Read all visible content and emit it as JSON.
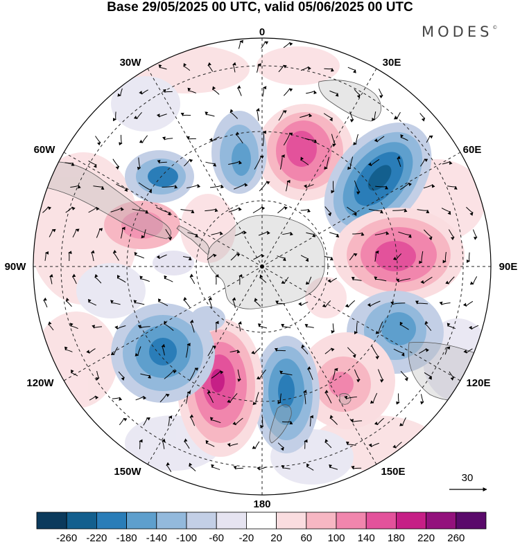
{
  "title": "Base 29/05/2025 00 UTC, valid 05/06/2025 00 UTC",
  "brand": "MODES",
  "brand_mark": "©",
  "longitude_labels": {
    "lon_0": "0",
    "lon_30e": "30E",
    "lon_60e": "60E",
    "lon_90e": "90E",
    "lon_120e": "120E",
    "lon_150e": "150E",
    "lon_180": "180",
    "lon_150w": "150W",
    "lon_120w": "120W",
    "lon_90w": "90W",
    "lon_60w": "60W",
    "lon_30w": "30W"
  },
  "vector_reference": "30",
  "colorbar": {
    "colors": [
      "#0b3a5c",
      "#135f8e",
      "#2a7db8",
      "#5e9fcd",
      "#93b9dc",
      "#c3cfe6",
      "#e6e4f1",
      "#ffffff",
      "#fadde0",
      "#f7b7c3",
      "#f186ad",
      "#e3529b",
      "#c61f86",
      "#93117c",
      "#5a0a6b"
    ],
    "labels": [
      "-260",
      "-220",
      "-180",
      "-140",
      "-100",
      "-60",
      "-20",
      "20",
      "60",
      "100",
      "140",
      "180",
      "220",
      "260"
    ]
  },
  "anomaly_centers": [
    {
      "sign": "positive",
      "sector": "0-30E",
      "strength": 200
    },
    {
      "sign": "negative",
      "sector": "30E-60E",
      "strength": -230
    },
    {
      "sign": "positive",
      "sector": "60E-90E",
      "strength": 170
    },
    {
      "sign": "negative",
      "sector": "100E-120E",
      "strength": -110
    },
    {
      "sign": "positive",
      "sector": "130E-150E",
      "strength": 150
    },
    {
      "sign": "negative",
      "sector": "170E-180",
      "strength": -150
    },
    {
      "sign": "positive",
      "sector": "150W-180",
      "strength": 230
    },
    {
      "sign": "negative",
      "sector": "120W-150W",
      "strength": -190
    },
    {
      "sign": "positive",
      "sector": "60W-90W",
      "strength": 90
    },
    {
      "sign": "negative",
      "sector": "30W-60W",
      "strength": -170
    },
    {
      "sign": "negative",
      "sector": "0-30W",
      "strength": -120
    }
  ]
}
